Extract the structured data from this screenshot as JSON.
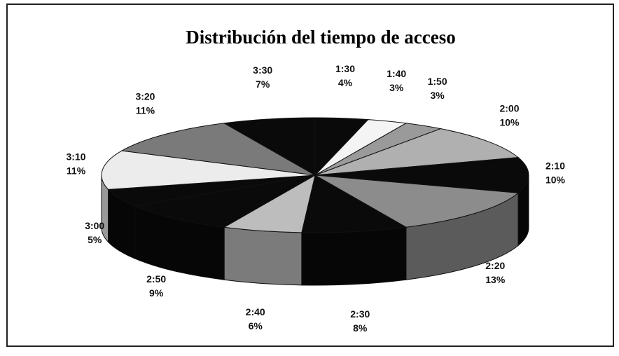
{
  "chart_data": {
    "type": "pie3d",
    "title": "Distribución del tiempo de acceso",
    "categories": [
      "1:30",
      "1:40",
      "1:50",
      "2:00",
      "2:10",
      "2:20",
      "2:30",
      "2:40",
      "2:50",
      "3:00",
      "3:10",
      "3:20",
      "3:30"
    ],
    "values": [
      4,
      3,
      3,
      10,
      10,
      13,
      8,
      6,
      9,
      5,
      11,
      11,
      7
    ],
    "value_labels": [
      "4%",
      "3%",
      "3%",
      "10%",
      "10%",
      "13%",
      "8%",
      "6%",
      "9%",
      "5%",
      "11%",
      "11%",
      "7%"
    ],
    "colors": [
      "#0a0a0a",
      "#f4f4f4",
      "#9a9a9a",
      "#b0b0b0",
      "#0a0a0a",
      "#8c8c8c",
      "#0a0a0a",
      "#bdbdbd",
      "#0a0a0a",
      "#0a0a0a",
      "#ececec",
      "#7a7a7a",
      "#0a0a0a"
    ]
  }
}
